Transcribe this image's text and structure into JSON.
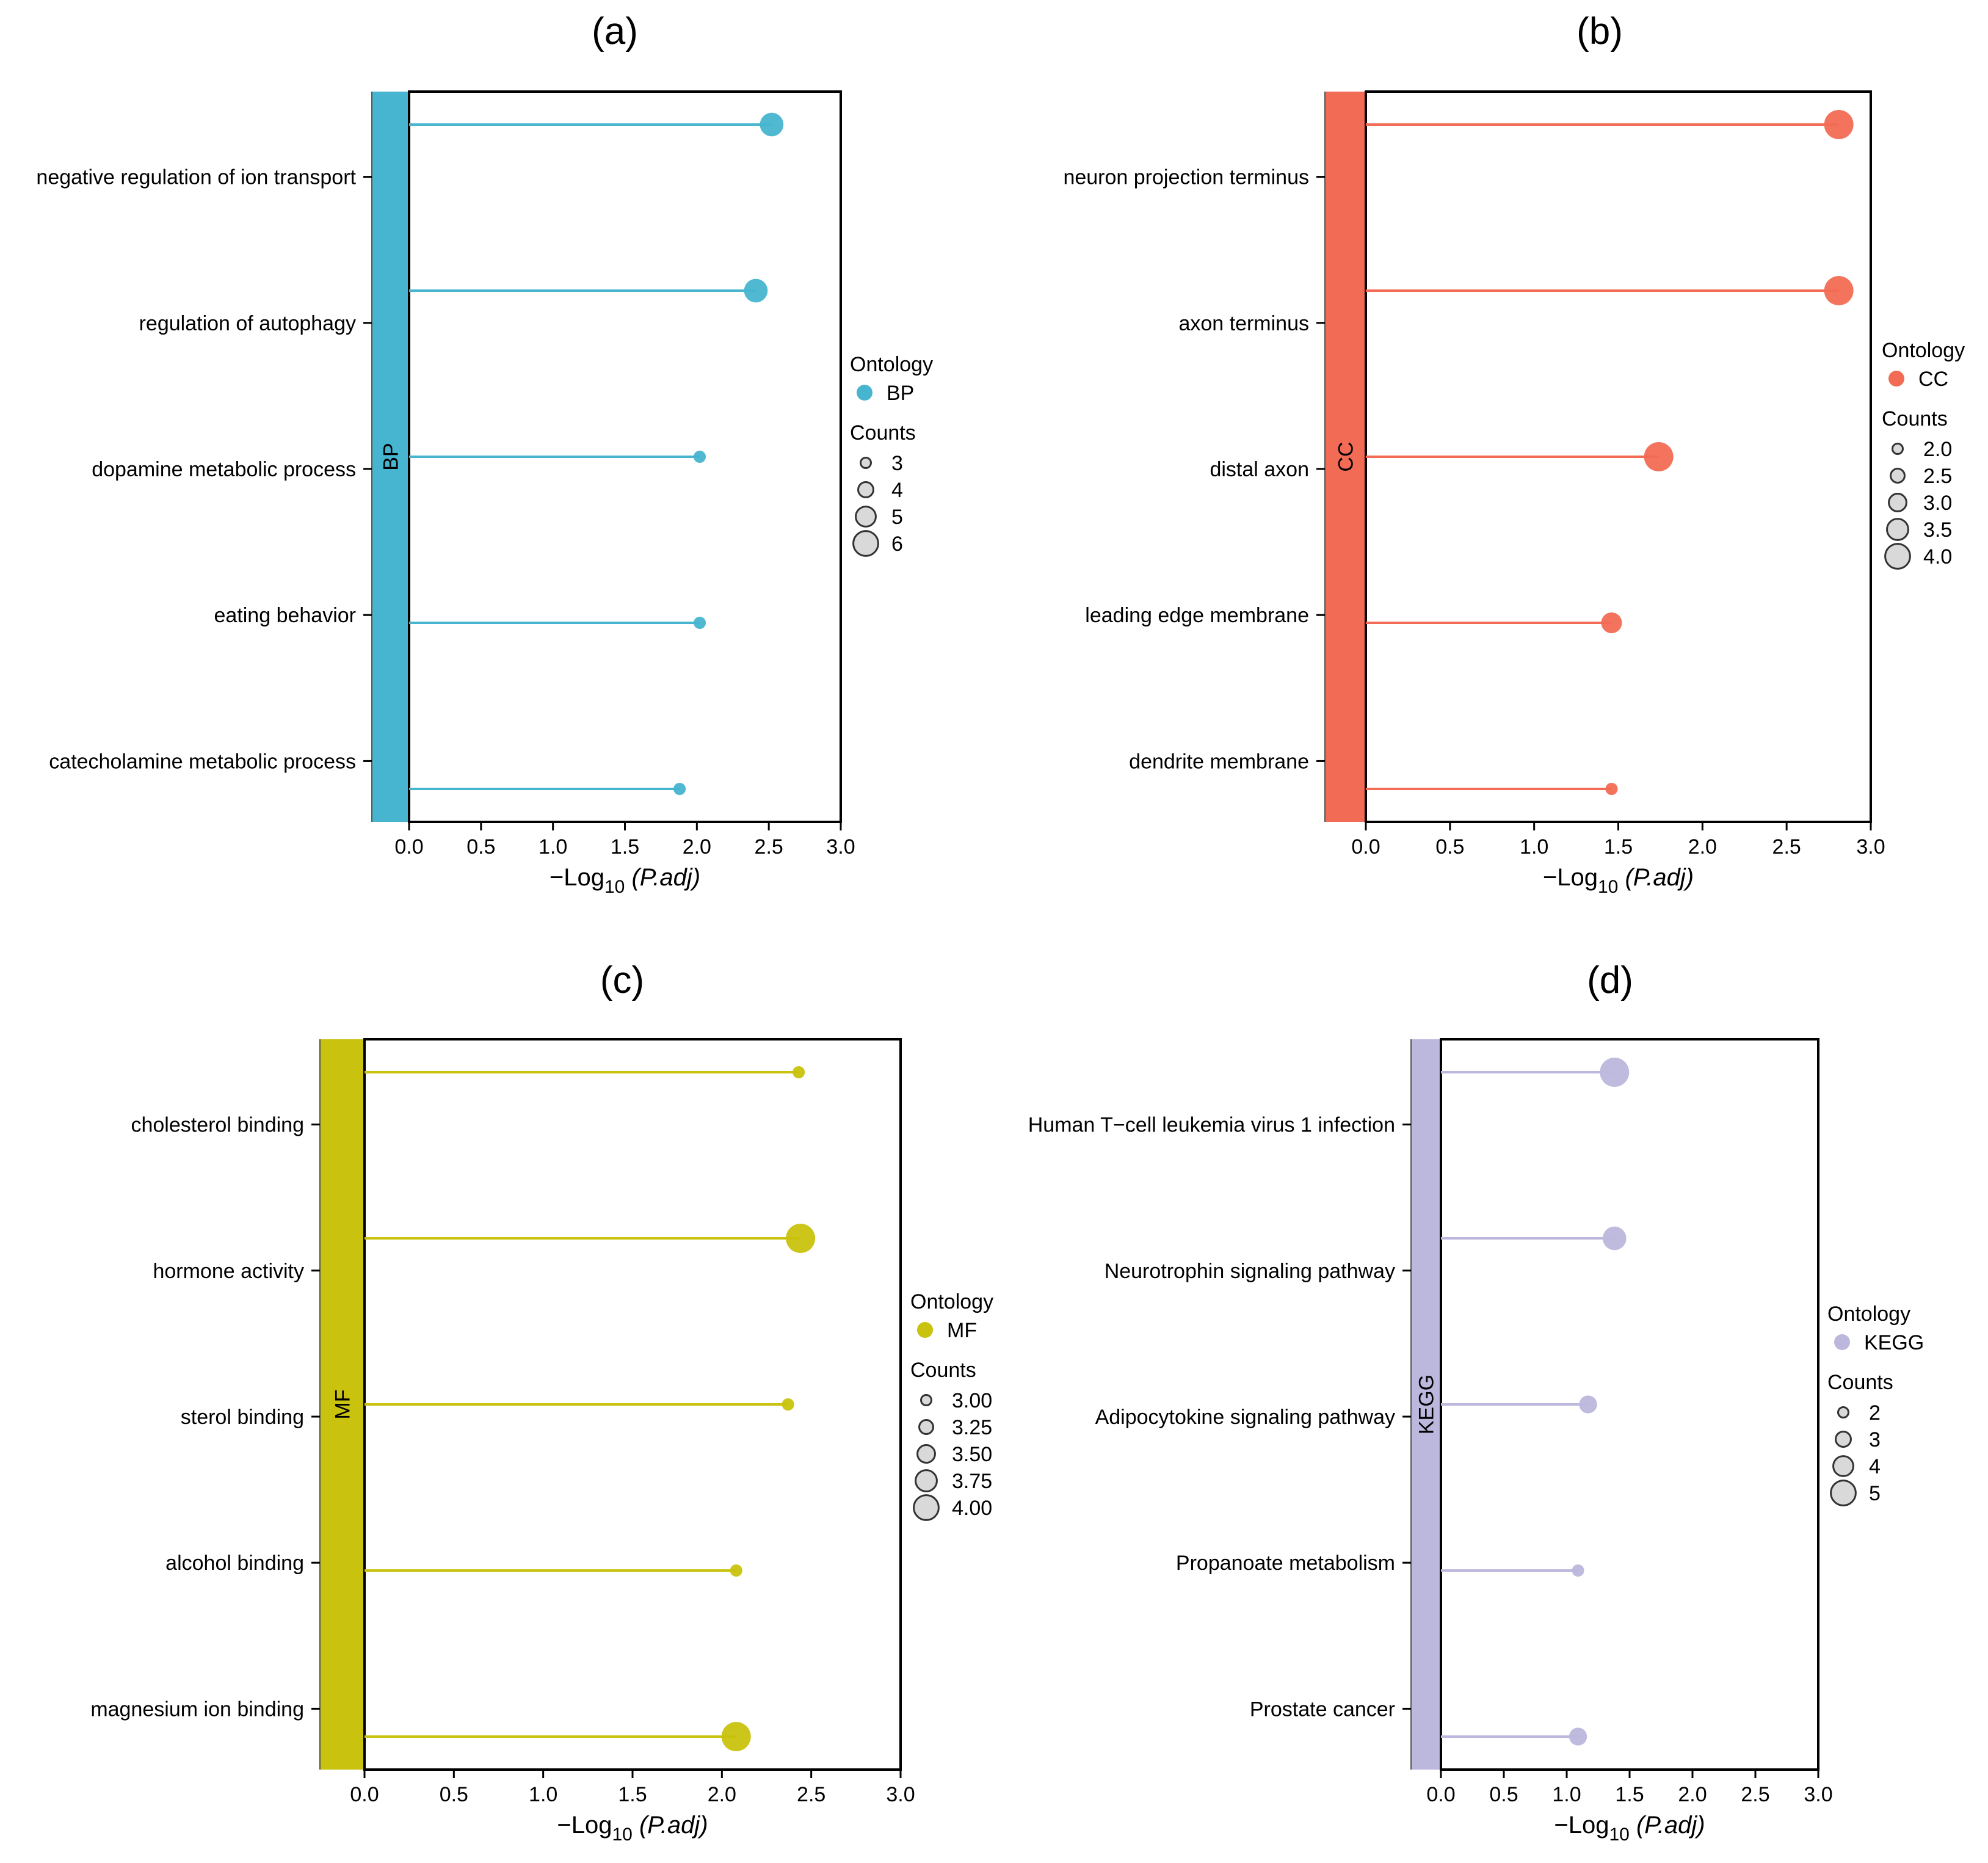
{
  "chart_data": [
    {
      "panel": "(a)",
      "type": "lollipop",
      "band_label": "BP",
      "color": "#47b5cf",
      "categories": [
        "negative regulation of ion transport",
        "regulation of autophagy",
        "dopamine metabolic process",
        "eating behavior",
        "catecholamine metabolic process"
      ],
      "values": [
        2.52,
        2.41,
        2.02,
        2.02,
        1.88
      ],
      "counts": [
        5,
        5,
        3,
        3,
        3
      ],
      "xlim": [
        0,
        3
      ],
      "xticks": [
        "0.0",
        "0.5",
        "1.0",
        "1.5",
        "2.0",
        "2.5",
        "3.0"
      ],
      "xlabel": {
        "prefix": "−Log",
        "sub": "10",
        "suffix": "(P.adj)"
      },
      "legend": {
        "ontology_title": "Ontology",
        "ontology_entry": "BP",
        "counts_title": "Counts",
        "counts_labels": [
          "3",
          "4",
          "5",
          "6"
        ],
        "counts_values": [
          3,
          4,
          5,
          6
        ]
      },
      "size_range": [
        3,
        6
      ]
    },
    {
      "panel": "(b)",
      "type": "lollipop",
      "band_label": "CC",
      "color": "#f26b54",
      "categories": [
        "neuron projection terminus",
        "axon terminus",
        "distal axon",
        "leading edge membrane",
        "dendrite membrane"
      ],
      "values": [
        2.81,
        2.81,
        1.74,
        1.46,
        1.46
      ],
      "counts": [
        4,
        4,
        4,
        3,
        2
      ],
      "xlim": [
        0,
        3
      ],
      "xticks": [
        "0.0",
        "0.5",
        "1.0",
        "1.5",
        "2.0",
        "2.5",
        "3.0"
      ],
      "xlabel": {
        "prefix": "−Log",
        "sub": "10",
        "suffix": "(P.adj)"
      },
      "legend": {
        "ontology_title": "Ontology",
        "ontology_entry": "CC",
        "counts_title": "Counts",
        "counts_labels": [
          "2.0",
          "2.5",
          "3.0",
          "3.5",
          "4.0"
        ],
        "counts_values": [
          2,
          2.5,
          3,
          3.5,
          4
        ]
      },
      "size_range": [
        2,
        4
      ]
    },
    {
      "panel": "(c)",
      "type": "lollipop",
      "band_label": "MF",
      "color": "#c9c20e",
      "categories": [
        "cholesterol binding",
        "hormone activity",
        "sterol binding",
        "alcohol binding",
        "magnesium ion binding"
      ],
      "values": [
        2.43,
        2.44,
        2.37,
        2.08,
        2.08
      ],
      "counts": [
        3,
        4,
        3,
        3,
        4
      ],
      "xlim": [
        0,
        3
      ],
      "xticks": [
        "0.0",
        "0.5",
        "1.0",
        "1.5",
        "2.0",
        "2.5",
        "3.0"
      ],
      "xlabel": {
        "prefix": "−Log",
        "sub": "10",
        "suffix": "(P.adj)"
      },
      "legend": {
        "ontology_title": "Ontology",
        "ontology_entry": "MF",
        "counts_title": "Counts",
        "counts_labels": [
          "3.00",
          "3.25",
          "3.50",
          "3.75",
          "4.00"
        ],
        "counts_values": [
          3,
          3.25,
          3.5,
          3.75,
          4
        ]
      },
      "size_range": [
        3,
        4
      ]
    },
    {
      "panel": "(d)",
      "type": "lollipop",
      "band_label": "KEGG",
      "color": "#bcb7dd",
      "categories": [
        "Human T−cell leukemia virus 1 infection",
        "Neurotrophin signaling pathway",
        "Adipocytokine signaling pathway",
        "Propanoate metabolism",
        "Prostate cancer"
      ],
      "values": [
        1.38,
        1.38,
        1.17,
        1.09,
        1.09
      ],
      "counts": [
        5,
        4,
        3,
        2,
        3
      ],
      "xlim": [
        0,
        3
      ],
      "xticks": [
        "0.0",
        "0.5",
        "1.0",
        "1.5",
        "2.0",
        "2.5",
        "3.0"
      ],
      "xlabel": {
        "prefix": "−Log",
        "sub": "10",
        "suffix": "(P.adj)"
      },
      "legend": {
        "ontology_title": "Ontology",
        "ontology_entry": "KEGG",
        "counts_title": "Counts",
        "counts_labels": [
          "2",
          "3",
          "4",
          "5"
        ],
        "counts_values": [
          2,
          3,
          4,
          5
        ]
      },
      "size_range": [
        2,
        5
      ]
    }
  ]
}
